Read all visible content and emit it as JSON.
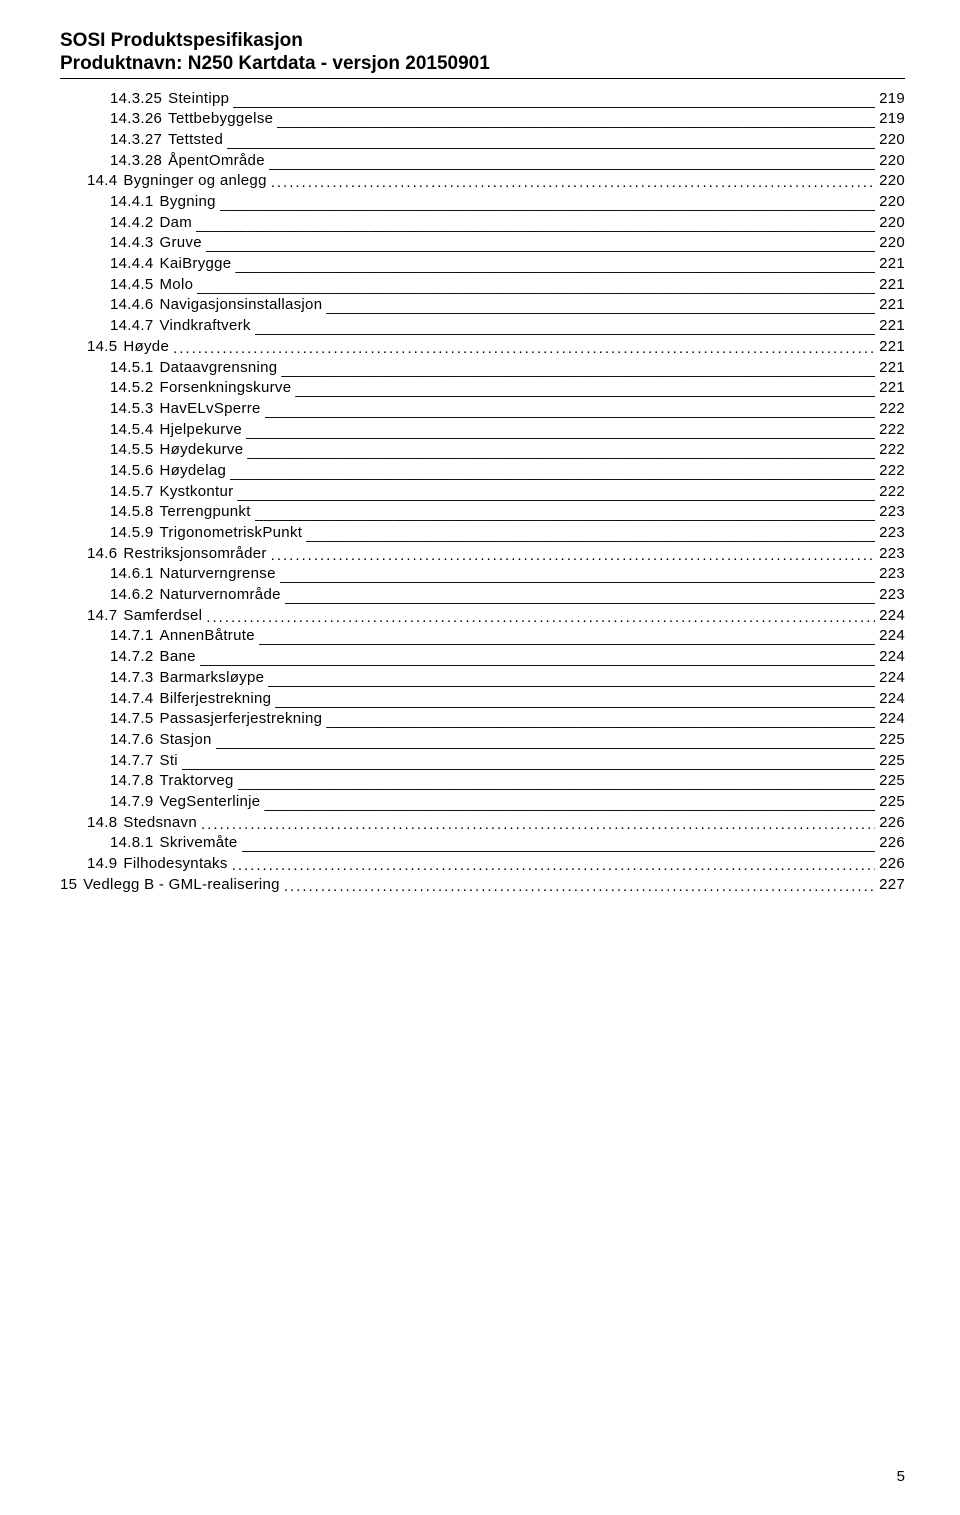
{
  "header": {
    "line1": "SOSI Produktspesifikasjon",
    "line2": "Produktnavn: N250 Kartdata - versjon 20150901"
  },
  "toc": {
    "fill_underscore": "___________________________________________________________________________________________________________________________________________________",
    "fill_dots": "........................................................................................................................................................................................................",
    "entries": [
      {
        "level": 3,
        "num": "14.3.25",
        "label": "Steintipp",
        "page": "219",
        "type": "underscore"
      },
      {
        "level": 3,
        "num": "14.3.26",
        "label": "Tettbebyggelse",
        "page": "219",
        "type": "underscore"
      },
      {
        "level": 3,
        "num": "14.3.27",
        "label": "Tettsted",
        "page": "220",
        "type": "underscore"
      },
      {
        "level": 3,
        "num": "14.3.28",
        "label": "ÅpentOmråde",
        "page": "220",
        "type": "underscore"
      },
      {
        "level": 2,
        "num": "14.4",
        "label": "Bygninger og anlegg",
        "page": "220",
        "type": "dots"
      },
      {
        "level": 3,
        "num": "14.4.1",
        "label": "Bygning",
        "page": "220",
        "type": "underscore"
      },
      {
        "level": 3,
        "num": "14.4.2",
        "label": "Dam",
        "page": "220",
        "type": "underscore"
      },
      {
        "level": 3,
        "num": "14.4.3",
        "label": "Gruve",
        "page": "220",
        "type": "underscore"
      },
      {
        "level": 3,
        "num": "14.4.4",
        "label": "KaiBrygge",
        "page": "221",
        "type": "underscore"
      },
      {
        "level": 3,
        "num": "14.4.5",
        "label": "Molo",
        "page": "221",
        "type": "underscore"
      },
      {
        "level": 3,
        "num": "14.4.6",
        "label": "Navigasjonsinstallasjon",
        "page": "221",
        "type": "underscore"
      },
      {
        "level": 3,
        "num": "14.4.7",
        "label": "Vindkraftverk",
        "page": "221",
        "type": "underscore"
      },
      {
        "level": 2,
        "num": "14.5",
        "label": "Høyde",
        "page": "221",
        "type": "dots"
      },
      {
        "level": 3,
        "num": "14.5.1",
        "label": "Dataavgrensning",
        "page": "221",
        "type": "underscore"
      },
      {
        "level": 3,
        "num": "14.5.2",
        "label": "Forsenkningskurve",
        "page": "221",
        "type": "underscore"
      },
      {
        "level": 3,
        "num": "14.5.3",
        "label": "HavELvSperre",
        "page": "222",
        "type": "underscore"
      },
      {
        "level": 3,
        "num": "14.5.4",
        "label": "Hjelpekurve",
        "page": "222",
        "type": "underscore"
      },
      {
        "level": 3,
        "num": "14.5.5",
        "label": "Høydekurve",
        "page": "222",
        "type": "underscore"
      },
      {
        "level": 3,
        "num": "14.5.6",
        "label": "Høydelag",
        "page": "222",
        "type": "underscore"
      },
      {
        "level": 3,
        "num": "14.5.7",
        "label": "Kystkontur",
        "page": "222",
        "type": "underscore"
      },
      {
        "level": 3,
        "num": "14.5.8",
        "label": "Terrengpunkt",
        "page": "223",
        "type": "underscore"
      },
      {
        "level": 3,
        "num": "14.5.9",
        "label": "TrigonometriskPunkt",
        "page": "223",
        "type": "underscore"
      },
      {
        "level": 2,
        "num": "14.6",
        "label": "Restriksjonsområder",
        "page": "223",
        "type": "dots"
      },
      {
        "level": 3,
        "num": "14.6.1",
        "label": "Naturverngrense",
        "page": "223",
        "type": "underscore"
      },
      {
        "level": 3,
        "num": "14.6.2",
        "label": "Naturvernområde",
        "page": "223",
        "type": "underscore"
      },
      {
        "level": 2,
        "num": "14.7",
        "label": "Samferdsel",
        "page": "224",
        "type": "dots"
      },
      {
        "level": 3,
        "num": "14.7.1",
        "label": "AnnenBåtrute",
        "page": "224",
        "type": "underscore"
      },
      {
        "level": 3,
        "num": "14.7.2",
        "label": "Bane",
        "page": "224",
        "type": "underscore"
      },
      {
        "level": 3,
        "num": "14.7.3",
        "label": "Barmarksløype",
        "page": "224",
        "type": "underscore"
      },
      {
        "level": 3,
        "num": "14.7.4",
        "label": "Bilferjestrekning",
        "page": "224",
        "type": "underscore"
      },
      {
        "level": 3,
        "num": "14.7.5",
        "label": "Passasjerferjestrekning",
        "page": "224",
        "type": "underscore"
      },
      {
        "level": 3,
        "num": "14.7.6",
        "label": "Stasjon",
        "page": "225",
        "type": "underscore"
      },
      {
        "level": 3,
        "num": "14.7.7",
        "label": "Sti",
        "page": "225",
        "type": "underscore"
      },
      {
        "level": 3,
        "num": "14.7.8",
        "label": "Traktorveg",
        "page": "225",
        "type": "underscore"
      },
      {
        "level": 3,
        "num": "14.7.9",
        "label": "VegSenterlinje",
        "page": "225",
        "type": "underscore"
      },
      {
        "level": 2,
        "num": "14.8",
        "label": "Stedsnavn",
        "page": "226",
        "type": "dots"
      },
      {
        "level": 3,
        "num": "14.8.1",
        "label": "Skrivemåte",
        "page": "226",
        "type": "underscore"
      },
      {
        "level": 2,
        "num": "14.9",
        "label": "Filhodesyntaks",
        "page": "226",
        "type": "dots"
      },
      {
        "level": 1,
        "num": "15",
        "label": "Vedlegg B - GML-realisering",
        "page": "227",
        "type": "dots"
      }
    ]
  },
  "footer": {
    "page_number": "5"
  }
}
